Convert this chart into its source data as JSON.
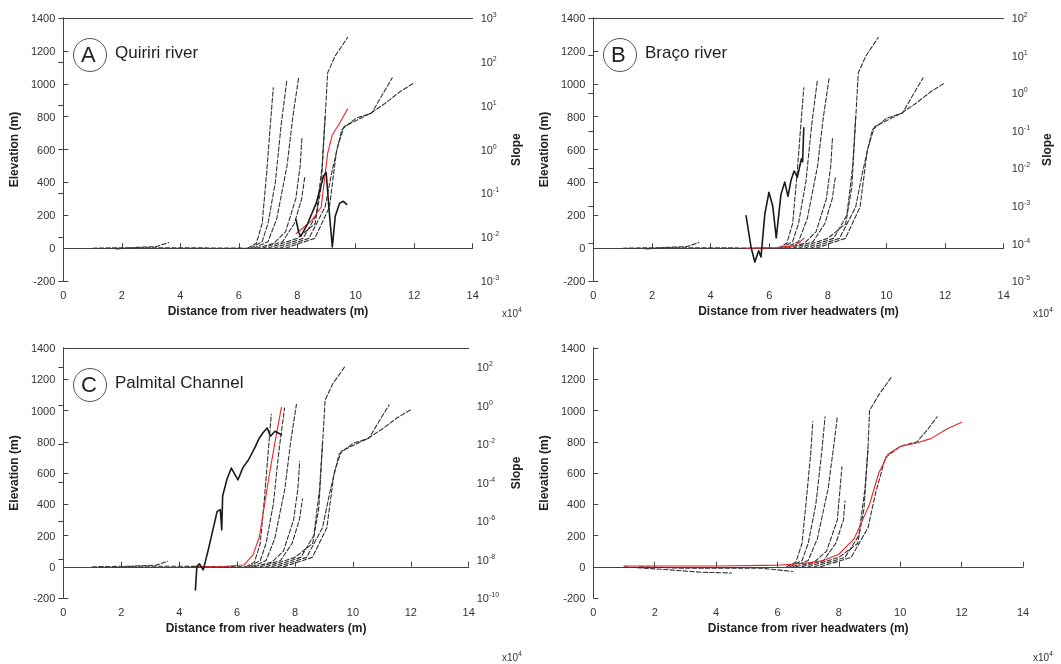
{
  "chart_data": [
    {
      "type": "line",
      "title": "Quiriri river",
      "annotations": [
        "A",
        "x10$^{4}$"
      ],
      "xlabel": "Distance from river headwaters (m)",
      "ylabel": "Elevation (m)",
      "y2label": "Slope",
      "xlim": [
        0,
        14
      ],
      "xticks": [
        0,
        2,
        4,
        6,
        8,
        10,
        12,
        14
      ],
      "ylim": [
        -200,
        1400
      ],
      "yticks": [
        -200,
        0,
        200,
        400,
        600,
        800,
        1000,
        1200,
        1400
      ],
      "y2lim": [
        0.001,
        1000
      ],
      "y2ticks": [
        {
          "value": 0.001,
          "label": "10$^{-3}$"
        },
        {
          "value": 0.01,
          "label": "10$^{-2}$"
        },
        {
          "value": 0.1,
          "label": "10$^{-1}$"
        },
        {
          "value": 1,
          "label": "10$^{0}$"
        },
        {
          "value": 10,
          "label": "10$^{1}$"
        },
        {
          "value": 100,
          "label": "10$^{2}$"
        },
        {
          "value": 1000,
          "label": "10$^{3}$"
        }
      ],
      "log": "y2",
      "marker": "none",
      "series": [
        {
          "color": "#333333",
          "line_style": "dashed",
          "x": [
            1.0,
            2.0,
            4.0,
            6.3
          ],
          "values": [
            0,
            3,
            3,
            0
          ]
        },
        {
          "color": "#333333",
          "line_style": "dashed",
          "x": [
            1.8,
            2.5,
            3.2,
            3.6
          ],
          "values": [
            -5,
            5,
            10,
            35
          ]
        },
        {
          "color": "#333333",
          "line_style": "dashed",
          "x": [
            6.3,
            6.6,
            6.8,
            6.95,
            7.08,
            7.18
          ],
          "values": [
            0,
            30,
            150,
            450,
            750,
            975
          ]
        },
        {
          "color": "#333333",
          "line_style": "dashed",
          "x": [
            6.4,
            6.8,
            7.0,
            7.25,
            7.45,
            7.64
          ],
          "values": [
            0,
            40,
            150,
            400,
            750,
            1016
          ]
        },
        {
          "color": "#333333",
          "line_style": "dashed",
          "x": [
            6.5,
            7.0,
            7.3,
            7.65,
            7.85,
            8.05
          ],
          "values": [
            0,
            40,
            180,
            500,
            800,
            1040
          ]
        },
        {
          "color": "#333333",
          "line_style": "dashed",
          "x": [
            6.6,
            7.2,
            7.6,
            7.95,
            8.1,
            8.16
          ],
          "values": [
            0,
            30,
            100,
            300,
            500,
            673
          ]
        },
        {
          "color": "#333333",
          "line_style": "dashed",
          "x": [
            6.8,
            7.5,
            7.9,
            8.15,
            8.26
          ],
          "values": [
            0,
            40,
            150,
            300,
            435
          ]
        },
        {
          "color": "#333333",
          "line_style": "dashed",
          "x": [
            7.0,
            8.0,
            8.61,
            8.82,
            8.95,
            9.04,
            9.3,
            9.72
          ],
          "values": [
            0,
            60,
            149,
            373,
            781,
            1067,
            1170,
            1281
          ]
        },
        {
          "color": "#333333",
          "line_style": "dashed",
          "x": [
            7.2,
            8.2,
            8.65,
            8.85,
            8.95
          ],
          "values": [
            0,
            60,
            200,
            500,
            802
          ]
        },
        {
          "color": "#333333",
          "line_style": "dashed",
          "x": [
            7.4,
            8.4,
            8.95,
            9.2,
            9.52,
            10.0,
            10.55,
            10.9,
            11.25
          ],
          "values": [
            0,
            60,
            250,
            475,
            720,
            790,
            822,
            930,
            1036
          ]
        },
        {
          "color": "#333333",
          "line_style": "dashed",
          "x": [
            7.6,
            8.6,
            9.1,
            9.35,
            9.6,
            10.5,
            11.0,
            11.5,
            12.0
          ],
          "values": [
            0,
            60,
            250,
            600,
            740,
            820,
            880,
            950,
            1006
          ]
        },
        {
          "color": "#e8262a",
          "line_style": "solid",
          "x": [
            7.96,
            8.5,
            8.82,
            9.04,
            9.2,
            9.45,
            9.72
          ],
          "values": [
            88,
            169,
            251,
            577,
            690,
            760,
            847
          ]
        },
        {
          "color": "#1a1a1a",
          "line_style": "solid",
          "axis": "y2",
          "x": [
            7.96,
            8.05,
            8.12,
            8.35,
            8.65,
            8.9,
            8.99,
            9.08,
            9.2,
            9.3,
            9.45,
            9.58,
            9.69
          ],
          "values": [
            0.025,
            0.013,
            0.0105,
            0.02,
            0.06,
            0.25,
            0.3,
            0.05,
            0.006,
            0.03,
            0.06,
            0.066,
            0.056
          ]
        }
      ]
    },
    {
      "type": "line",
      "title": "Braço river",
      "annotations": [
        "B",
        "x10$^{4}$"
      ],
      "xlabel": "Distance from river headwaters (m)",
      "ylabel": "Elevation (m)",
      "y2label": "Slope",
      "xlim": [
        0,
        14
      ],
      "xticks": [
        0,
        2,
        4,
        6,
        8,
        10,
        12,
        14
      ],
      "ylim": [
        -200,
        1400
      ],
      "yticks": [
        -200,
        0,
        200,
        400,
        600,
        800,
        1000,
        1200,
        1400
      ],
      "y2lim": [
        1e-05,
        100
      ],
      "y2ticks": [
        {
          "value": 1e-05,
          "label": "10$^{-5}$"
        },
        {
          "value": 0.0001,
          "label": "10$^{-4}$"
        },
        {
          "value": 0.001,
          "label": "10$^{-3}$"
        },
        {
          "value": 0.01,
          "label": "10$^{-2}$"
        },
        {
          "value": 0.1,
          "label": "10$^{-1}$"
        },
        {
          "value": 1,
          "label": "10$^{0}$"
        },
        {
          "value": 10,
          "label": "10$^{1}$"
        },
        {
          "value": 100,
          "label": "10$^{2}$"
        }
      ],
      "log": "y2",
      "marker": "none",
      "series": [
        {
          "color": "#333333",
          "line_style": "dashed",
          "x": [
            1.0,
            2.0,
            4.0,
            6.3
          ],
          "values": [
            0,
            3,
            3,
            0
          ]
        },
        {
          "color": "#333333",
          "line_style": "dashed",
          "x": [
            1.8,
            2.5,
            3.2,
            3.6
          ],
          "values": [
            -5,
            5,
            10,
            35
          ]
        },
        {
          "color": "#333333",
          "line_style": "dashed",
          "x": [
            6.3,
            6.6,
            6.8,
            6.95,
            7.08,
            7.18
          ],
          "values": [
            0,
            30,
            150,
            450,
            750,
            975
          ]
        },
        {
          "color": "#333333",
          "line_style": "dashed",
          "x": [
            6.4,
            6.8,
            7.0,
            7.25,
            7.45,
            7.64
          ],
          "values": [
            0,
            40,
            150,
            400,
            750,
            1016
          ]
        },
        {
          "color": "#333333",
          "line_style": "dashed",
          "x": [
            6.5,
            7.0,
            7.3,
            7.65,
            7.85,
            8.05
          ],
          "values": [
            0,
            40,
            180,
            500,
            800,
            1040
          ]
        },
        {
          "color": "#333333",
          "line_style": "dashed",
          "x": [
            6.6,
            7.2,
            7.6,
            7.95,
            8.1,
            8.16
          ],
          "values": [
            0,
            30,
            100,
            300,
            500,
            673
          ]
        },
        {
          "color": "#333333",
          "line_style": "dashed",
          "x": [
            6.8,
            7.5,
            7.9,
            8.15,
            8.26
          ],
          "values": [
            0,
            40,
            150,
            300,
            435
          ]
        },
        {
          "color": "#333333",
          "line_style": "dashed",
          "x": [
            7.0,
            8.0,
            8.61,
            8.82,
            8.95,
            9.04,
            9.3,
            9.72
          ],
          "values": [
            0,
            60,
            149,
            373,
            781,
            1067,
            1170,
            1281
          ]
        },
        {
          "color": "#333333",
          "line_style": "dashed",
          "x": [
            7.2,
            8.2,
            8.65,
            8.85,
            8.95
          ],
          "values": [
            0,
            60,
            200,
            500,
            802
          ]
        },
        {
          "color": "#333333",
          "line_style": "dashed",
          "x": [
            7.4,
            8.4,
            8.95,
            9.2,
            9.52,
            10.0,
            10.55,
            10.9,
            11.25
          ],
          "values": [
            0,
            60,
            250,
            475,
            720,
            790,
            822,
            930,
            1036
          ]
        },
        {
          "color": "#333333",
          "line_style": "dashed",
          "x": [
            7.6,
            8.6,
            9.1,
            9.35,
            9.6,
            10.5,
            11.0,
            11.5,
            12.0
          ],
          "values": [
            0,
            60,
            250,
            600,
            740,
            820,
            880,
            950,
            1006
          ]
        },
        {
          "color": "#e8262a",
          "line_style": "solid",
          "x": [
            5.19,
            5.8,
            6.27,
            6.81,
            7.0,
            7.19
          ],
          "values": [
            0,
            2,
            4,
            14,
            30,
            61
          ]
        },
        {
          "color": "#1a1a1a",
          "line_style": "solid",
          "axis": "y2",
          "x": [
            5.21,
            5.38,
            5.51,
            5.64,
            5.72,
            5.85,
            5.99,
            6.12,
            6.24,
            6.4,
            6.53,
            6.64,
            6.75,
            6.85,
            6.96,
            7.1,
            7.14,
            7.18
          ],
          "values": [
            0.00055,
            8e-05,
            3.2e-05,
            6.4e-05,
            4.4e-05,
            0.0006,
            0.0023,
            0.001,
            0.00014,
            0.002,
            0.0043,
            0.0018,
            0.005,
            0.0085,
            0.0058,
            0.018,
            0.015,
            0.12
          ]
        }
      ]
    },
    {
      "type": "line",
      "title": "Palmital Channel",
      "annotations": [
        "C",
        "x10$^{4}$"
      ],
      "xlabel": "Distance from river headwaters (m)",
      "ylabel": "Elevation (m)",
      "y2label": "Slope",
      "xlim": [
        0,
        14
      ],
      "xticks": [
        0,
        2,
        4,
        6,
        8,
        10,
        12,
        14
      ],
      "ylim": [
        -200,
        1400
      ],
      "yticks": [
        -200,
        0,
        200,
        400,
        600,
        800,
        1000,
        1200,
        1400
      ],
      "y2lim": [
        1e-10,
        1000
      ],
      "y2ticks": [
        {
          "value": 1e-10,
          "label": "10$^{-10}$"
        },
        {
          "value": 1e-08,
          "label": "10$^{-8}$"
        },
        {
          "value": 1e-06,
          "label": "10$^{-6}$"
        },
        {
          "value": 0.0001,
          "label": "10$^{-4}$"
        },
        {
          "value": 0.01,
          "label": "10$^{-2}$"
        },
        {
          "value": 1,
          "label": "10$^{0}$"
        },
        {
          "value": 100,
          "label": "10$^{2}$"
        }
      ],
      "log": "y2",
      "marker": "none",
      "series": [
        {
          "color": "#333333",
          "line_style": "dashed",
          "x": [
            1.0,
            2.0,
            4.0,
            6.3
          ],
          "values": [
            0,
            3,
            3,
            0
          ]
        },
        {
          "color": "#333333",
          "line_style": "dashed",
          "x": [
            1.8,
            2.5,
            3.2,
            3.6
          ],
          "values": [
            -5,
            5,
            10,
            35
          ]
        },
        {
          "color": "#333333",
          "line_style": "dashed",
          "x": [
            6.3,
            6.6,
            6.8,
            6.95,
            7.08,
            7.18
          ],
          "values": [
            0,
            30,
            150,
            450,
            750,
            975
          ]
        },
        {
          "color": "#333333",
          "line_style": "dashed",
          "x": [
            6.4,
            6.8,
            7.0,
            7.25,
            7.45,
            7.64
          ],
          "values": [
            0,
            40,
            150,
            400,
            750,
            1016
          ]
        },
        {
          "color": "#333333",
          "line_style": "dashed",
          "x": [
            6.5,
            7.0,
            7.3,
            7.65,
            7.85,
            8.05
          ],
          "values": [
            0,
            40,
            180,
            500,
            800,
            1040
          ]
        },
        {
          "color": "#333333",
          "line_style": "dashed",
          "x": [
            6.6,
            7.2,
            7.6,
            7.95,
            8.1,
            8.16
          ],
          "values": [
            0,
            30,
            100,
            300,
            500,
            673
          ]
        },
        {
          "color": "#333333",
          "line_style": "dashed",
          "x": [
            6.8,
            7.5,
            7.9,
            8.15,
            8.26
          ],
          "values": [
            0,
            40,
            150,
            300,
            435
          ]
        },
        {
          "color": "#333333",
          "line_style": "dashed",
          "x": [
            7.0,
            8.0,
            8.61,
            8.82,
            8.95,
            9.04,
            9.3,
            9.72
          ],
          "values": [
            0,
            60,
            149,
            373,
            781,
            1067,
            1170,
            1281
          ]
        },
        {
          "color": "#333333",
          "line_style": "dashed",
          "x": [
            7.2,
            8.2,
            8.65,
            8.85,
            8.95
          ],
          "values": [
            0,
            60,
            200,
            500,
            802
          ]
        },
        {
          "color": "#333333",
          "line_style": "dashed",
          "x": [
            7.4,
            8.4,
            8.95,
            9.2,
            9.52,
            10.0,
            10.55,
            10.9,
            11.25
          ],
          "values": [
            0,
            60,
            250,
            475,
            720,
            790,
            822,
            930,
            1036
          ]
        },
        {
          "color": "#333333",
          "line_style": "dashed",
          "x": [
            7.6,
            8.6,
            9.1,
            9.35,
            9.6,
            10.5,
            11.0,
            11.5,
            12.0
          ],
          "values": [
            0,
            60,
            250,
            600,
            740,
            820,
            880,
            950,
            1006
          ]
        },
        {
          "color": "#e8262a",
          "line_style": "solid",
          "x": [
            4.56,
            5.5,
            6.23,
            6.55,
            6.77,
            6.95,
            7.1,
            7.31,
            7.53
          ],
          "values": [
            0,
            2,
            11,
            76,
            192,
            400,
            576,
            798,
            1020
          ]
        },
        {
          "color": "#1a1a1a",
          "line_style": "solid",
          "axis": "y2",
          "x": [
            4.56,
            4.61,
            4.7,
            4.83,
            5.0,
            5.2,
            5.31,
            5.42,
            5.47,
            5.5,
            5.65,
            5.8,
            6.03,
            6.2,
            6.39,
            6.6,
            6.77,
            6.9,
            7.04,
            7.15,
            7.31,
            7.53
          ],
          "values": [
            2.6e-10,
            4.4e-09,
            6e-09,
            2.9e-09,
            3e-08,
            6e-07,
            3.2e-06,
            3.9e-06,
            3.5e-07,
            2e-05,
            0.00015,
            0.00057,
            0.00014,
            0.0006,
            0.0015,
            0.006,
            0.021,
            0.04,
            0.069,
            0.026,
            0.047,
            0.031
          ]
        }
      ]
    },
    {
      "type": "line",
      "annotations": [
        "x10$^{4}$"
      ],
      "xlabel": "Distance from river headwaters (m)",
      "ylabel": "Elevation (m)",
      "xlim": [
        0,
        14
      ],
      "xticks": [
        0,
        2,
        4,
        6,
        8,
        10,
        12,
        14
      ],
      "ylim": [
        -200,
        1400
      ],
      "yticks": [
        -200,
        0,
        200,
        400,
        600,
        800,
        1000,
        1200,
        1400
      ],
      "marker": "none",
      "series": [
        {
          "color": "#333333",
          "line_style": "dashed",
          "x": [
            1.0,
            2.5,
            3.5,
            4.5
          ],
          "values": [
            0,
            -20,
            -35,
            -40
          ]
        },
        {
          "color": "#333333",
          "line_style": "dashed",
          "x": [
            1.5,
            3.0,
            5.5,
            6.5
          ],
          "values": [
            0,
            -10,
            -10,
            -30
          ]
        },
        {
          "color": "#333333",
          "line_style": "dashed",
          "x": [
            6.3,
            6.6,
            6.8,
            6.95,
            7.08,
            7.15
          ],
          "values": [
            0,
            30,
            150,
            450,
            720,
            930
          ]
        },
        {
          "color": "#333333",
          "line_style": "dashed",
          "x": [
            6.4,
            6.8,
            7.0,
            7.25,
            7.45,
            7.55
          ],
          "values": [
            0,
            40,
            150,
            400,
            750,
            960
          ]
        },
        {
          "color": "#333333",
          "line_style": "dashed",
          "x": [
            6.5,
            7.0,
            7.3,
            7.65,
            7.85,
            7.95
          ],
          "values": [
            0,
            40,
            180,
            500,
            800,
            960
          ]
        },
        {
          "color": "#333333",
          "line_style": "dashed",
          "x": [
            6.6,
            7.2,
            7.6,
            7.95,
            8.1
          ],
          "values": [
            0,
            30,
            100,
            300,
            640
          ]
        },
        {
          "color": "#333333",
          "line_style": "dashed",
          "x": [
            6.8,
            7.5,
            7.9,
            8.15,
            8.2
          ],
          "values": [
            0,
            40,
            150,
            300,
            420
          ]
        },
        {
          "color": "#333333",
          "line_style": "dashed",
          "x": [
            7.0,
            8.0,
            8.61,
            8.82,
            8.95,
            9.0,
            9.3,
            9.7
          ],
          "values": [
            0,
            60,
            149,
            373,
            760,
            1000,
            1100,
            1210
          ]
        },
        {
          "color": "#333333",
          "line_style": "dashed",
          "x": [
            7.2,
            8.2,
            8.65,
            8.85,
            8.95
          ],
          "values": [
            0,
            60,
            200,
            500,
            760
          ]
        },
        {
          "color": "#333333",
          "line_style": "dashed",
          "x": [
            7.4,
            8.4,
            8.95,
            9.2,
            9.52,
            10.0,
            10.55,
            10.9,
            11.2
          ],
          "values": [
            0,
            60,
            250,
            475,
            700,
            770,
            800,
            880,
            960
          ]
        },
        {
          "color": "#e8262a",
          "line_style": "solid",
          "x": [
            1,
            4,
            6,
            7,
            7.5,
            8,
            8.5,
            9,
            9.3,
            9.6,
            10,
            10.5,
            11,
            11.5,
            12
          ],
          "values": [
            5,
            5,
            10,
            25,
            40,
            80,
            180,
            400,
            600,
            720,
            770,
            790,
            820,
            880,
            925
          ]
        }
      ]
    }
  ]
}
